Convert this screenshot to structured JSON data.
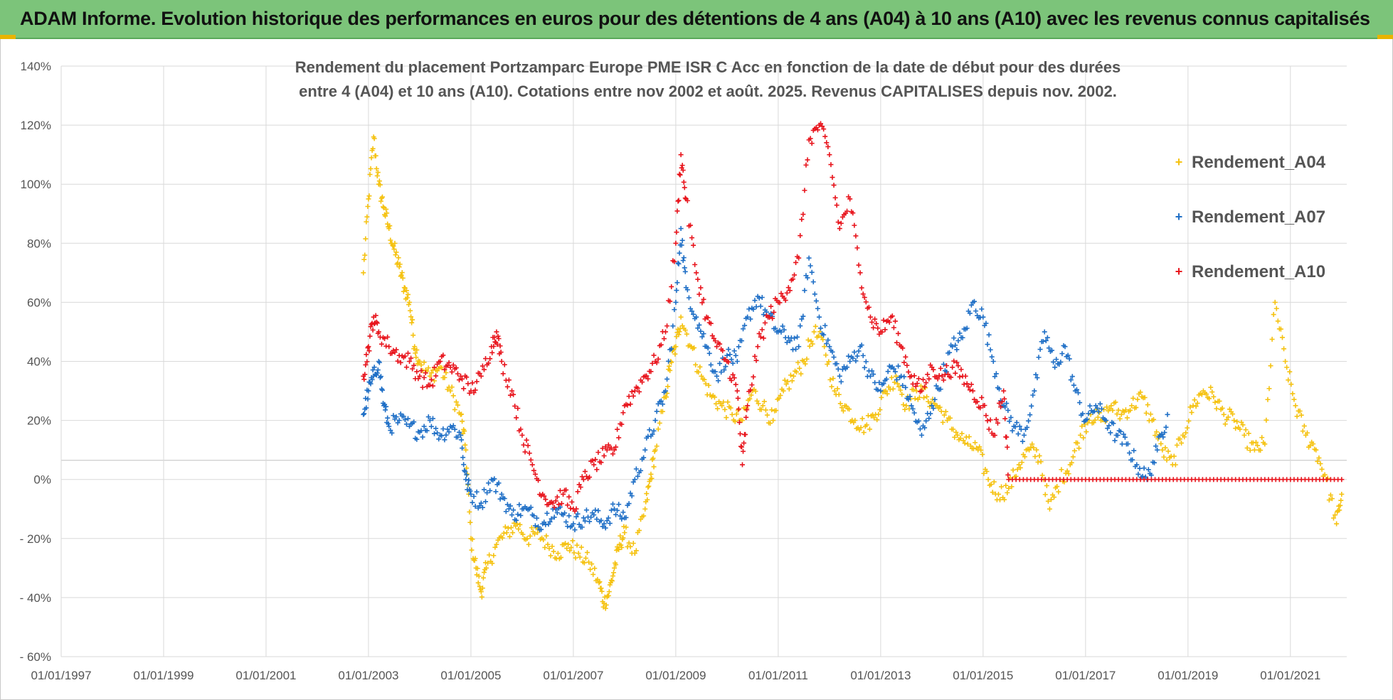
{
  "banner": {
    "title": "ADAM Informe. Evolution historique des performances en euros pour des détentions de 4 ans (A04) à 10 ans (A10) avec les revenus connus capitalisés"
  },
  "colors": {
    "banner_bg": "#7cc47a",
    "a04": "#f5c211",
    "a07": "#1f6fc6",
    "a10": "#e8141c",
    "grid": "#d9d9d9",
    "axis_text": "#555555"
  },
  "chart_data": {
    "type": "scatter",
    "title_line1": "Rendement du placement Portzamparc Europe PME ISR C Acc en fonction de la date de début pour des durées",
    "title_line2": "entre 4 (A04) et 10 ans (A10). Cotations entre nov 2002 et août. 2025. Revenus CAPITALISES depuis nov. 2002.",
    "xlabel": "",
    "ylabel": "",
    "x_ticks": [
      "01/01/1997",
      "01/01/1999",
      "01/01/2001",
      "01/01/2003",
      "01/01/2005",
      "01/01/2007",
      "01/01/2009",
      "01/01/2011",
      "01/01/2013",
      "01/01/2015",
      "01/01/2017",
      "01/01/2019",
      "01/01/2021"
    ],
    "xlim": [
      1997.0,
      2022.1
    ],
    "y_ticks": [
      "140%",
      "120%",
      "100%",
      "80%",
      "60%",
      "40%",
      "20%",
      "0%",
      "- 20%",
      "- 40%",
      "- 60%"
    ],
    "ylim": [
      -60,
      140
    ],
    "grid": true,
    "legend_position": "right",
    "marker": "+",
    "series": [
      {
        "name": "Rendement_A04",
        "color": "#f5c211",
        "points": [
          [
            2002.9,
            70
          ],
          [
            2003.0,
            95
          ],
          [
            2003.1,
            116
          ],
          [
            2003.2,
            100
          ],
          [
            2003.3,
            92
          ],
          [
            2003.4,
            85
          ],
          [
            2003.5,
            78
          ],
          [
            2003.6,
            72
          ],
          [
            2003.7,
            65
          ],
          [
            2003.8,
            60
          ],
          [
            2003.9,
            45
          ],
          [
            2004.0,
            40
          ],
          [
            2004.2,
            35
          ],
          [
            2004.4,
            38
          ],
          [
            2004.6,
            30
          ],
          [
            2004.8,
            22
          ],
          [
            2004.9,
            10
          ],
          [
            2005.0,
            -20
          ],
          [
            2005.1,
            -30
          ],
          [
            2005.2,
            -38
          ],
          [
            2005.3,
            -30
          ],
          [
            2005.5,
            -22
          ],
          [
            2005.7,
            -18
          ],
          [
            2005.9,
            -15
          ],
          [
            2006.1,
            -20
          ],
          [
            2006.3,
            -18
          ],
          [
            2006.5,
            -22
          ],
          [
            2006.7,
            -25
          ],
          [
            2006.9,
            -22
          ],
          [
            2007.1,
            -25
          ],
          [
            2007.3,
            -28
          ],
          [
            2007.5,
            -35
          ],
          [
            2007.6,
            -42
          ],
          [
            2007.7,
            -38
          ],
          [
            2007.8,
            -30
          ],
          [
            2007.9,
            -22
          ],
          [
            2008.0,
            -18
          ],
          [
            2008.2,
            -25
          ],
          [
            2008.4,
            -10
          ],
          [
            2008.5,
            0
          ],
          [
            2008.6,
            10
          ],
          [
            2008.8,
            28
          ],
          [
            2008.9,
            40
          ],
          [
            2009.0,
            45
          ],
          [
            2009.1,
            55
          ],
          [
            2009.3,
            45
          ],
          [
            2009.5,
            35
          ],
          [
            2009.7,
            28
          ],
          [
            2009.9,
            25
          ],
          [
            2010.1,
            22
          ],
          [
            2010.3,
            20
          ],
          [
            2010.5,
            30
          ],
          [
            2010.7,
            25
          ],
          [
            2010.9,
            20
          ],
          [
            2011.1,
            30
          ],
          [
            2011.3,
            35
          ],
          [
            2011.5,
            40
          ],
          [
            2011.7,
            50
          ],
          [
            2011.9,
            45
          ],
          [
            2012.1,
            30
          ],
          [
            2012.3,
            25
          ],
          [
            2012.5,
            20
          ],
          [
            2012.7,
            18
          ],
          [
            2012.9,
            22
          ],
          [
            2013.1,
            30
          ],
          [
            2013.3,
            35
          ],
          [
            2013.5,
            25
          ],
          [
            2013.7,
            30
          ],
          [
            2013.9,
            28
          ],
          [
            2014.1,
            25
          ],
          [
            2014.3,
            20
          ],
          [
            2014.5,
            15
          ],
          [
            2014.7,
            12
          ],
          [
            2014.9,
            10
          ],
          [
            2015.1,
            0
          ],
          [
            2015.3,
            -5
          ],
          [
            2015.5,
            -3
          ],
          [
            2015.7,
            5
          ],
          [
            2015.9,
            10
          ],
          [
            2016.1,
            8
          ],
          [
            2016.3,
            -10
          ],
          [
            2016.5,
            0
          ],
          [
            2016.7,
            5
          ],
          [
            2016.9,
            15
          ],
          [
            2017.1,
            22
          ],
          [
            2017.3,
            20
          ],
          [
            2017.5,
            25
          ],
          [
            2017.7,
            22
          ],
          [
            2017.9,
            25
          ],
          [
            2018.1,
            28
          ],
          [
            2018.3,
            20
          ],
          [
            2018.5,
            10
          ],
          [
            2018.7,
            5
          ],
          [
            2018.9,
            15
          ],
          [
            2019.1,
            25
          ],
          [
            2019.3,
            30
          ],
          [
            2019.5,
            28
          ],
          [
            2019.7,
            22
          ],
          [
            2019.9,
            20
          ],
          [
            2020.1,
            15
          ],
          [
            2020.3,
            10
          ],
          [
            2020.5,
            12
          ],
          [
            2020.7,
            60
          ],
          [
            2020.9,
            40
          ],
          [
            2021.1,
            25
          ],
          [
            2021.3,
            15
          ],
          [
            2021.5,
            10
          ],
          [
            2021.7,
            0
          ],
          [
            2021.9,
            -15
          ],
          [
            2022.0,
            -5
          ]
        ]
      },
      {
        "name": "Rendement_A07",
        "color": "#1f6fc6",
        "points": [
          [
            2002.9,
            22
          ],
          [
            2003.0,
            30
          ],
          [
            2003.1,
            35
          ],
          [
            2003.2,
            40
          ],
          [
            2003.3,
            25
          ],
          [
            2003.4,
            18
          ],
          [
            2003.6,
            20
          ],
          [
            2003.8,
            18
          ],
          [
            2004.0,
            16
          ],
          [
            2004.2,
            20
          ],
          [
            2004.4,
            15
          ],
          [
            2004.6,
            18
          ],
          [
            2004.8,
            15
          ],
          [
            2004.9,
            0
          ],
          [
            2005.0,
            -5
          ],
          [
            2005.2,
            -8
          ],
          [
            2005.4,
            0
          ],
          [
            2005.6,
            -5
          ],
          [
            2005.8,
            -12
          ],
          [
            2006.0,
            -10
          ],
          [
            2006.2,
            -12
          ],
          [
            2006.4,
            -15
          ],
          [
            2006.6,
            -10
          ],
          [
            2006.8,
            -12
          ],
          [
            2007.0,
            -15
          ],
          [
            2007.2,
            -13
          ],
          [
            2007.4,
            -12
          ],
          [
            2007.6,
            -15
          ],
          [
            2007.8,
            -10
          ],
          [
            2008.0,
            -13
          ],
          [
            2008.2,
            0
          ],
          [
            2008.4,
            10
          ],
          [
            2008.6,
            20
          ],
          [
            2008.8,
            30
          ],
          [
            2009.0,
            60
          ],
          [
            2009.1,
            85
          ],
          [
            2009.2,
            65
          ],
          [
            2009.4,
            55
          ],
          [
            2009.6,
            45
          ],
          [
            2009.8,
            35
          ],
          [
            2010.0,
            42
          ],
          [
            2010.2,
            40
          ],
          [
            2010.4,
            55
          ],
          [
            2010.6,
            62
          ],
          [
            2010.8,
            55
          ],
          [
            2011.0,
            50
          ],
          [
            2011.2,
            48
          ],
          [
            2011.4,
            45
          ],
          [
            2011.6,
            75
          ],
          [
            2011.8,
            55
          ],
          [
            2012.0,
            45
          ],
          [
            2012.2,
            35
          ],
          [
            2012.4,
            40
          ],
          [
            2012.6,
            45
          ],
          [
            2012.8,
            35
          ],
          [
            2013.0,
            30
          ],
          [
            2013.2,
            38
          ],
          [
            2013.4,
            35
          ],
          [
            2013.6,
            25
          ],
          [
            2013.8,
            15
          ],
          [
            2014.0,
            25
          ],
          [
            2014.2,
            35
          ],
          [
            2014.4,
            45
          ],
          [
            2014.6,
            48
          ],
          [
            2014.8,
            60
          ],
          [
            2015.0,
            55
          ],
          [
            2015.2,
            40
          ],
          [
            2015.4,
            25
          ],
          [
            2015.6,
            18
          ],
          [
            2015.8,
            15
          ],
          [
            2016.0,
            30
          ],
          [
            2016.2,
            50
          ],
          [
            2016.4,
            38
          ],
          [
            2016.6,
            45
          ],
          [
            2016.8,
            30
          ],
          [
            2017.0,
            20
          ],
          [
            2017.2,
            25
          ],
          [
            2017.4,
            20
          ],
          [
            2017.6,
            15
          ],
          [
            2017.8,
            12
          ],
          [
            2018.0,
            5
          ],
          [
            2018.2,
            0
          ],
          [
            2018.4,
            10
          ],
          [
            2018.6,
            22
          ]
        ]
      },
      {
        "name": "Rendement_A10",
        "color": "#e8141c",
        "points": [
          [
            2002.9,
            35
          ],
          [
            2003.0,
            45
          ],
          [
            2003.1,
            55
          ],
          [
            2003.2,
            50
          ],
          [
            2003.4,
            45
          ],
          [
            2003.6,
            42
          ],
          [
            2003.8,
            40
          ],
          [
            2004.0,
            35
          ],
          [
            2004.2,
            32
          ],
          [
            2004.4,
            40
          ],
          [
            2004.6,
            38
          ],
          [
            2004.8,
            35
          ],
          [
            2005.0,
            30
          ],
          [
            2005.2,
            35
          ],
          [
            2005.4,
            45
          ],
          [
            2005.5,
            50
          ],
          [
            2005.6,
            40
          ],
          [
            2005.8,
            30
          ],
          [
            2006.0,
            15
          ],
          [
            2006.2,
            5
          ],
          [
            2006.4,
            -5
          ],
          [
            2006.6,
            -8
          ],
          [
            2006.8,
            -5
          ],
          [
            2007.0,
            -10
          ],
          [
            2007.2,
            0
          ],
          [
            2007.4,
            5
          ],
          [
            2007.6,
            8
          ],
          [
            2007.8,
            10
          ],
          [
            2008.0,
            25
          ],
          [
            2008.2,
            30
          ],
          [
            2008.4,
            35
          ],
          [
            2008.6,
            40
          ],
          [
            2008.8,
            50
          ],
          [
            2009.0,
            80
          ],
          [
            2009.1,
            110
          ],
          [
            2009.2,
            95
          ],
          [
            2009.4,
            70
          ],
          [
            2009.6,
            55
          ],
          [
            2009.8,
            45
          ],
          [
            2010.0,
            40
          ],
          [
            2010.2,
            30
          ],
          [
            2010.3,
            5
          ],
          [
            2010.4,
            25
          ],
          [
            2010.6,
            45
          ],
          [
            2010.8,
            55
          ],
          [
            2011.0,
            60
          ],
          [
            2011.2,
            65
          ],
          [
            2011.4,
            75
          ],
          [
            2011.6,
            115
          ],
          [
            2011.8,
            120
          ],
          [
            2012.0,
            110
          ],
          [
            2012.2,
            85
          ],
          [
            2012.4,
            95
          ],
          [
            2012.6,
            70
          ],
          [
            2012.8,
            55
          ],
          [
            2013.0,
            50
          ],
          [
            2013.2,
            55
          ],
          [
            2013.4,
            45
          ],
          [
            2013.6,
            35
          ],
          [
            2013.8,
            30
          ],
          [
            2014.0,
            38
          ],
          [
            2014.2,
            35
          ],
          [
            2014.4,
            38
          ],
          [
            2014.6,
            35
          ],
          [
            2014.8,
            30
          ],
          [
            2015.0,
            25
          ],
          [
            2015.2,
            15
          ],
          [
            2015.4,
            30
          ],
          [
            2015.5,
            0
          ],
          [
            2016.0,
            0
          ],
          [
            2016.5,
            0
          ],
          [
            2017.0,
            0
          ],
          [
            2017.5,
            0
          ],
          [
            2018.0,
            0
          ],
          [
            2018.5,
            0
          ],
          [
            2019.0,
            0
          ],
          [
            2019.5,
            0
          ],
          [
            2020.0,
            0
          ],
          [
            2020.5,
            0
          ],
          [
            2021.0,
            0
          ],
          [
            2021.5,
            0
          ],
          [
            2022.0,
            0
          ]
        ]
      }
    ]
  }
}
